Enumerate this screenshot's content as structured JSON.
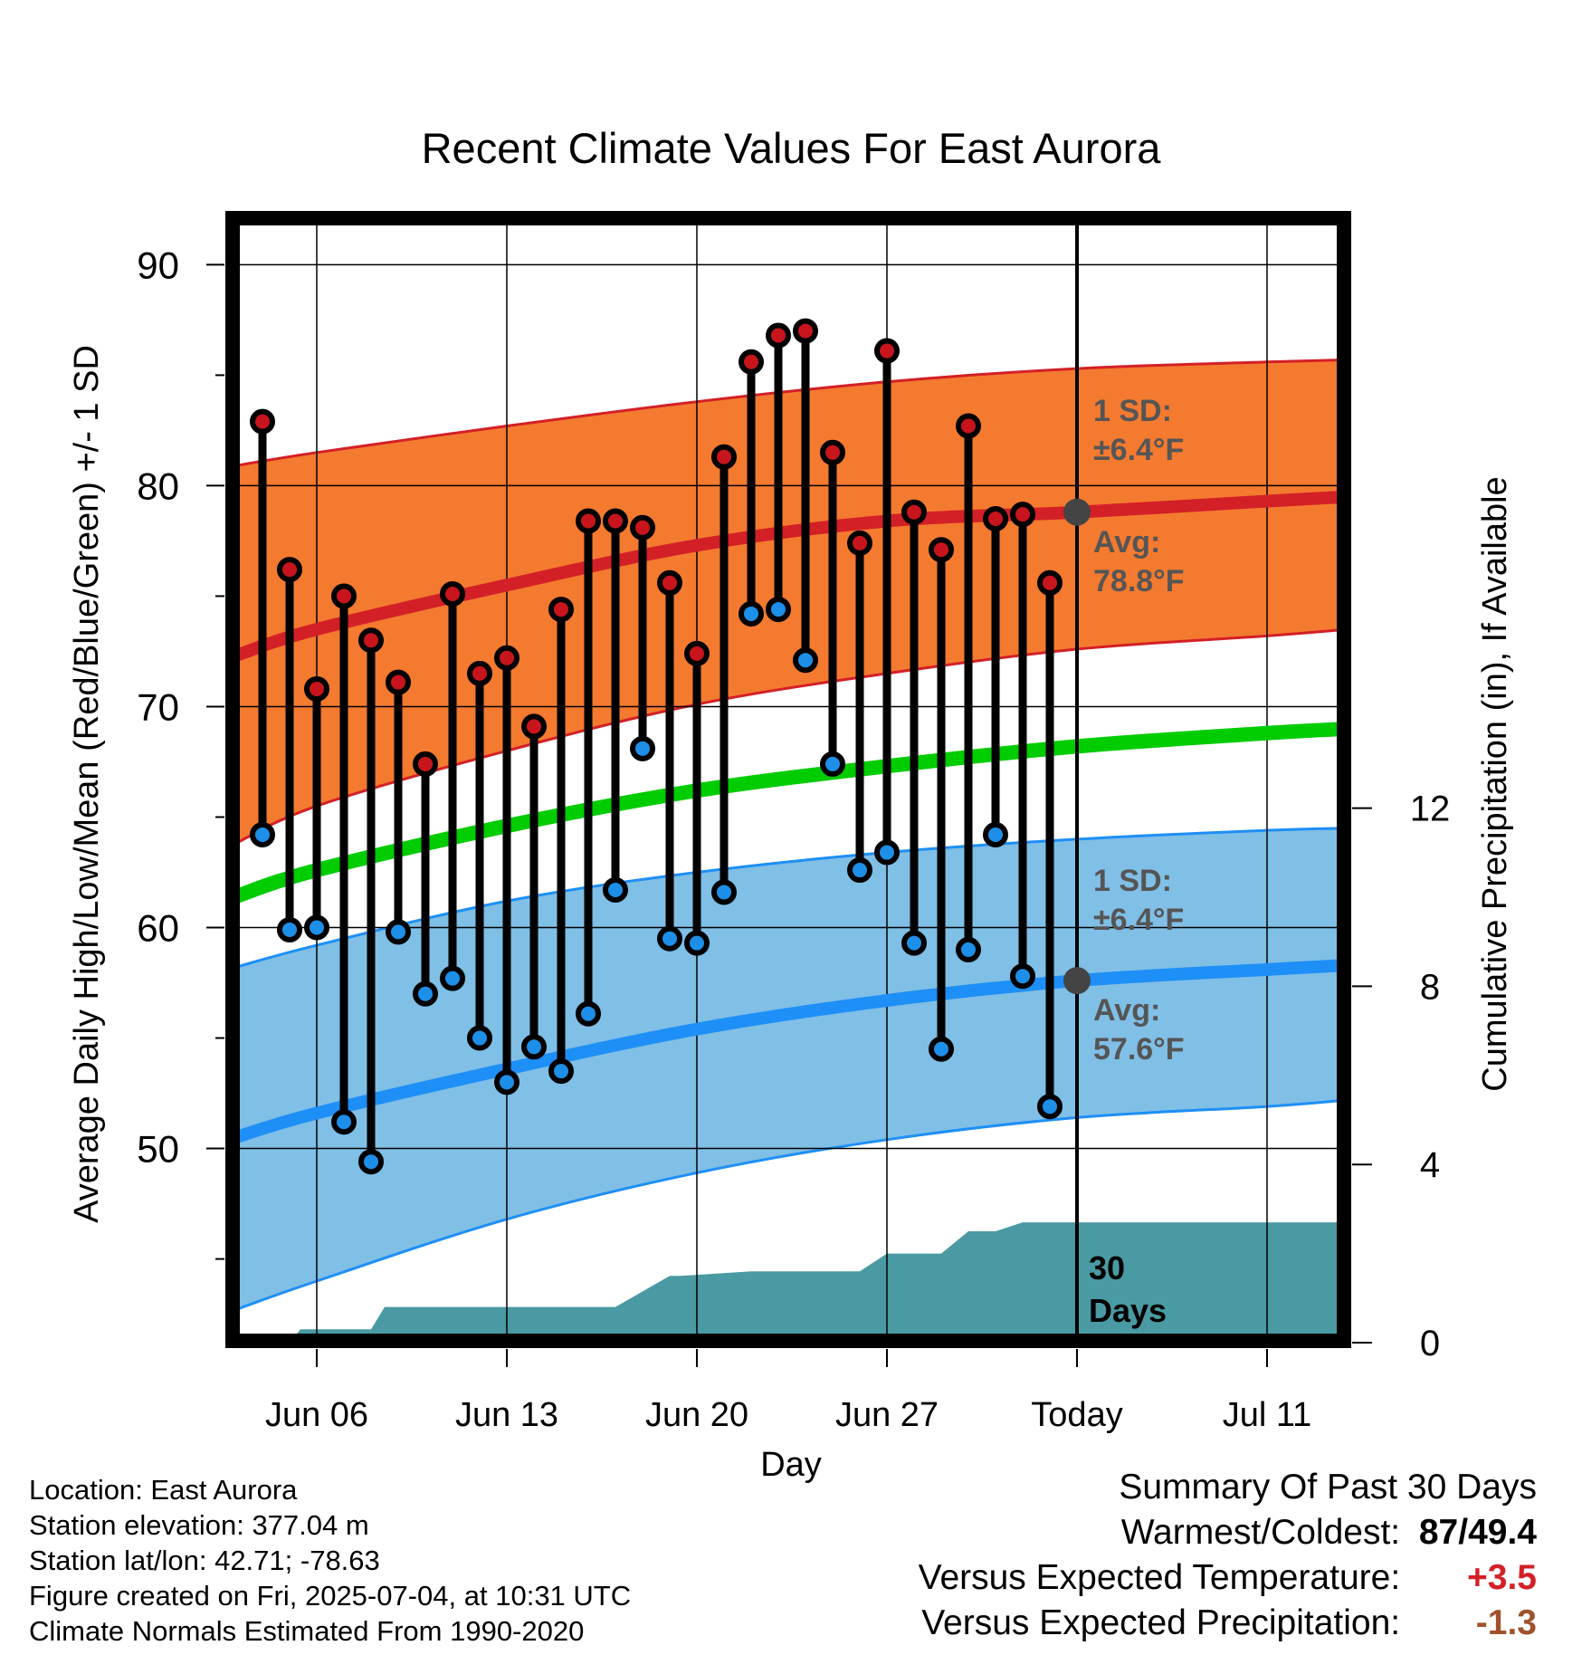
{
  "chart_data": {
    "type": "line",
    "title": "Recent Climate Values For East Aurora",
    "xlabel": "Day",
    "ylabel": "Average Daily High/Low/Mean (Red/Blue/Green) +/- 1 SD",
    "y2label": "Cumulative Precipitation (in), If Available",
    "ylim": [
      41.5,
      91.9
    ],
    "y2lim": [
      0,
      18
    ],
    "yticks": [
      50,
      60,
      70,
      80,
      90
    ],
    "y2ticks": [
      0,
      4,
      8,
      12
    ],
    "xlim": [
      2.3,
      14.2
    ],
    "xticks": [
      {
        "day": 6,
        "label": "Jun 06"
      },
      {
        "day": 13,
        "label": "Jun 13"
      },
      {
        "day": 20,
        "label": "Jun 20"
      },
      {
        "day": 27,
        "label": "Jun 27"
      },
      {
        "day": 34,
        "label": "Today"
      },
      {
        "day": 41,
        "label": "Jul 11"
      }
    ],
    "today_day": 34,
    "grid": true,
    "colors": {
      "high_band": "#f47a2f",
      "high_line": "#d32027",
      "low_band": "#80bfe6",
      "low_line": "#1e8ff6",
      "mean_line": "#00cc00",
      "precip": "#4a9aa3",
      "marker_high": "#c8151d",
      "marker_low": "#1e8fe8",
      "annotation": "#555555"
    },
    "normals": {
      "days": [
        3,
        6,
        13,
        20,
        27,
        34,
        41,
        44
      ],
      "high_avg": [
        72.3,
        73.5,
        75.5,
        77.3,
        78.4,
        78.8,
        79.3,
        79.5
      ],
      "high_upper": [
        80.9,
        81.5,
        82.7,
        83.8,
        84.7,
        85.3,
        85.6,
        85.7
      ],
      "high_lower": [
        63.8,
        65.5,
        68.0,
        70.1,
        71.5,
        72.6,
        73.2,
        73.5
      ],
      "mean": [
        61.4,
        62.6,
        64.6,
        66.2,
        67.3,
        68.2,
        68.8,
        69.0
      ],
      "low_avg": [
        50.5,
        51.6,
        53.6,
        55.4,
        56.7,
        57.6,
        58.1,
        58.3
      ],
      "low_upper": [
        58.2,
        59.2,
        61.2,
        62.5,
        63.4,
        64.0,
        64.4,
        64.5
      ],
      "low_lower": [
        42.7,
        44.0,
        46.8,
        48.9,
        50.4,
        51.4,
        51.9,
        52.2
      ]
    },
    "series": [
      {
        "name": "High",
        "days": [
          4,
          5,
          6,
          7,
          8,
          9,
          10,
          11,
          12,
          13,
          14,
          15,
          16,
          17,
          18,
          19,
          20,
          21,
          22,
          23,
          24,
          25,
          26,
          27,
          28,
          29,
          30,
          31,
          32,
          33
        ],
        "values": [
          82.9,
          76.2,
          70.8,
          75.0,
          73.0,
          71.1,
          67.4,
          75.1,
          71.5,
          72.2,
          69.1,
          74.4,
          78.4,
          78.4,
          78.1,
          75.6,
          72.4,
          81.3,
          85.6,
          86.8,
          87.0,
          81.5,
          77.4,
          86.1,
          78.8,
          77.1,
          82.7,
          78.5,
          78.7,
          75.6
        ]
      },
      {
        "name": "Low",
        "days": [
          4,
          5,
          6,
          7,
          8,
          9,
          10,
          11,
          12,
          13,
          14,
          15,
          16,
          17,
          18,
          19,
          20,
          21,
          22,
          23,
          24,
          25,
          26,
          27,
          28,
          29,
          30,
          31,
          32,
          33
        ],
        "values": [
          64.2,
          59.9,
          60.0,
          51.2,
          49.4,
          59.8,
          57.0,
          57.7,
          55.0,
          53.0,
          54.6,
          53.5,
          56.1,
          61.7,
          68.1,
          59.5,
          59.3,
          61.6,
          74.2,
          74.4,
          72.1,
          67.4,
          62.6,
          63.4,
          59.3,
          54.5,
          59.0,
          64.2,
          57.8,
          51.9
        ]
      }
    ],
    "precip": {
      "days": [
        3.0,
        5.0,
        5.4,
        7.0,
        8.0,
        8.5,
        9.0,
        12.0,
        17.0,
        19.0,
        19.4,
        22.0,
        26.0,
        27.0,
        28.0,
        29.0,
        30.0,
        31.0,
        32.0,
        33.0,
        34.0,
        44.0
      ],
      "values": [
        0,
        0,
        0.3,
        0.3,
        0.3,
        0.8,
        0.8,
        0.8,
        0.8,
        1.5,
        1.5,
        1.6,
        1.6,
        2.0,
        2.0,
        2.0,
        2.5,
        2.5,
        2.7,
        2.7,
        2.7,
        2.7
      ]
    },
    "annotations": {
      "high_sd_title": "1 SD:",
      "high_sd_value": "±6.4°F",
      "high_avg_title": "Avg:",
      "high_avg_value": "78.8°F",
      "low_sd_title": "1 SD:",
      "low_sd_value": "±6.4°F",
      "low_avg_title": "Avg:",
      "low_avg_value": "57.6°F",
      "window_count": "30",
      "window_unit": "Days"
    }
  },
  "footer": {
    "location": "Location: East Aurora",
    "elevation": "Station elevation: 377.04 m",
    "latlon": "Station lat/lon: 42.71; -78.63",
    "created": "Figure created on Fri, 2025-07-04, at 10:31 UTC",
    "normals": "Climate Normals Estimated From 1990-2020"
  },
  "summary": {
    "title": "Summary Of Past 30 Days",
    "warm_cold_label": "Warmest/Coldest:",
    "warm_value": "87",
    "cold_value": "/49.4",
    "temp_label": "Versus Expected Temperature:",
    "temp_value": "+3.5",
    "temp_color": "#d32027",
    "precip_label": "Versus Expected Precipitation:",
    "precip_value": "-1.3",
    "precip_color": "#a0522d"
  }
}
